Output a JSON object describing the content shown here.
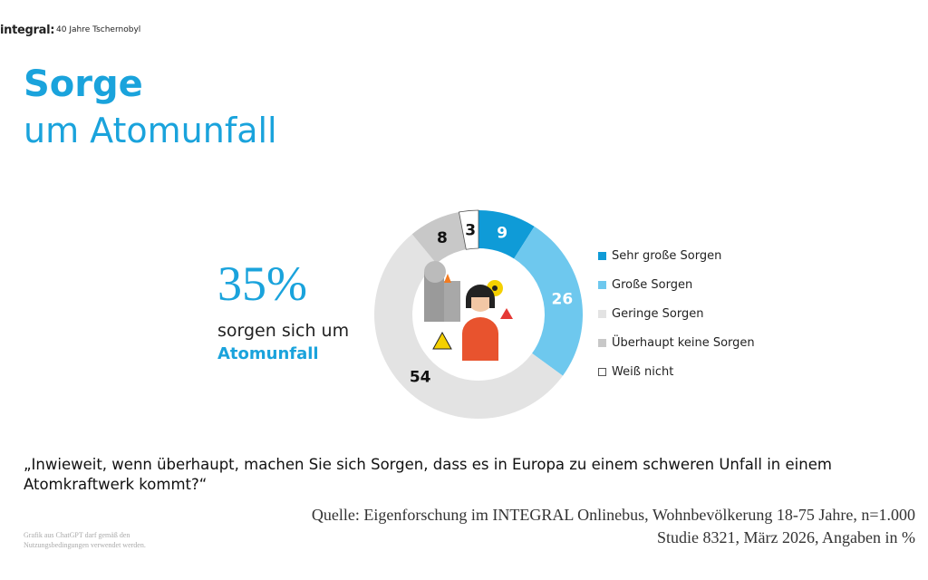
{
  "header": {
    "logo": "integral:",
    "topic": "40 Jahre Tschernobyl"
  },
  "title": {
    "line1": "Sorge",
    "line2": "um Atomunfall"
  },
  "highlight": {
    "value": "35%",
    "text": "sorgen sich um",
    "accent": "Atomunfall"
  },
  "chart_data": {
    "type": "pie",
    "donut": true,
    "categories": [
      "Sehr große Sorgen",
      "Große Sorgen",
      "Geringe Sorgen",
      "Überhaupt keine Sorgen",
      "Weiß nicht"
    ],
    "values": [
      9,
      26,
      54,
      8,
      3
    ],
    "colors": [
      "#0f9bd7",
      "#6ec8ee",
      "#e3e3e3",
      "#c8c8c8",
      "#ffffff"
    ],
    "label_colors": [
      "#ffffff",
      "#ffffff",
      "#111111",
      "#111111",
      "#111111"
    ],
    "legend_position": "right",
    "center_image": "worried-woman-nuclear-plant-illustration"
  },
  "question": "„Inwieweit, wenn überhaupt, machen Sie sich Sorgen, dass es in Europa zu einem schweren Unfall in einem Atomkraftwerk kommt?“",
  "source": {
    "line1": "Quelle: Eigenforschung im INTEGRAL Onlinebus, Wohnbevölkerung 18-75 Jahre, n=1.000",
    "line2": "Studie 8321, März 2026, Angaben in %"
  },
  "note": {
    "line1": "Grafik aus ChatGPT darf gemäß den",
    "line2": "Nutzungsbedingungen verwendet werden."
  }
}
